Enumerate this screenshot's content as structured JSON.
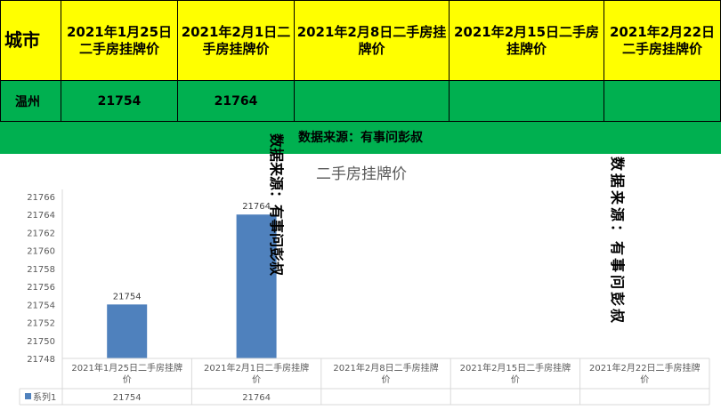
{
  "table": {
    "city_header": "城市",
    "date_headers": [
      "2021年1月25日二手房挂牌价",
      "2021年2月1日二手房挂牌价",
      "2021年2月8日二手房挂牌价",
      "2021年2月15日二手房挂牌价",
      "2021年2月22日二手房挂牌价"
    ],
    "row": {
      "city": "温州",
      "values": [
        "21754",
        "21764",
        "",
        "",
        ""
      ]
    }
  },
  "source_note": "数据来源：有事问彭叔",
  "watermark_1": "数据来源：有事问彭叔",
  "watermark_2": "数据来源：有事问彭叔",
  "colors": {
    "header_bg": "#ffff00",
    "row_bg": "#00b050",
    "bar": "#4f81bd"
  },
  "chart_data": {
    "type": "bar",
    "title": "二手房挂牌价",
    "categories": [
      "2021年1月25日二手房挂牌价",
      "2021年2月1日二手房挂牌价",
      "2021年2月8日二手房挂牌价",
      "2021年2月15日二手房挂牌价",
      "2021年2月22日二手房挂牌价"
    ],
    "series": [
      {
        "name": "系列1",
        "values": [
          21754,
          21764,
          null,
          null,
          null
        ]
      }
    ],
    "data_labels": [
      "21754",
      "21764",
      "",
      "",
      ""
    ],
    "ylim": [
      21748,
      21766
    ],
    "yticks": [
      21748,
      21750,
      21752,
      21754,
      21756,
      21758,
      21760,
      21762,
      21764,
      21766
    ],
    "grid": false,
    "legend": "data-table"
  }
}
